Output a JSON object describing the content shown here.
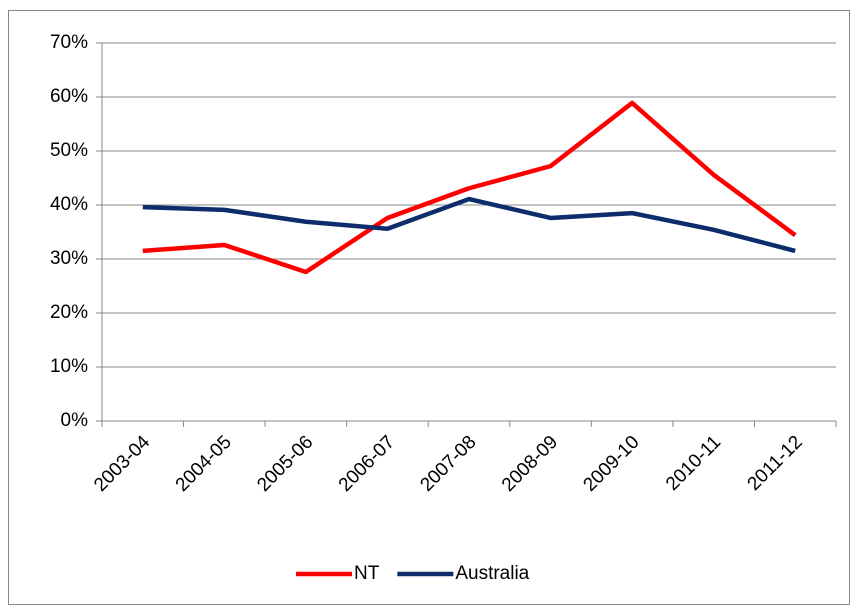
{
  "chart_data": {
    "type": "line",
    "categories": [
      "2003-04",
      "2004-05",
      "2005-06",
      "2006-07",
      "2007-08",
      "2008-09",
      "2009-10",
      "2010-11",
      "2011-12"
    ],
    "series": [
      {
        "name": "NT",
        "color": "#ff0000",
        "values": [
          31.5,
          32.6,
          27.6,
          37.6,
          43.1,
          47.2,
          58.9,
          45.6,
          34.4
        ]
      },
      {
        "name": "Australia",
        "color": "#0d2c6c",
        "values": [
          39.6,
          39.1,
          36.9,
          35.6,
          41.1,
          37.6,
          38.5,
          35.4,
          31.5
        ]
      }
    ],
    "ylim": [
      0,
      70
    ],
    "yticks": [
      {
        "value": 0,
        "label": "0%"
      },
      {
        "value": 10,
        "label": "10%"
      },
      {
        "value": 20,
        "label": "20%"
      },
      {
        "value": 30,
        "label": "30%"
      },
      {
        "value": 40,
        "label": "40%"
      },
      {
        "value": 50,
        "label": "50%"
      },
      {
        "value": 60,
        "label": "60%"
      },
      {
        "value": 70,
        "label": "70%"
      }
    ],
    "grid": true,
    "legend": "bottom"
  }
}
